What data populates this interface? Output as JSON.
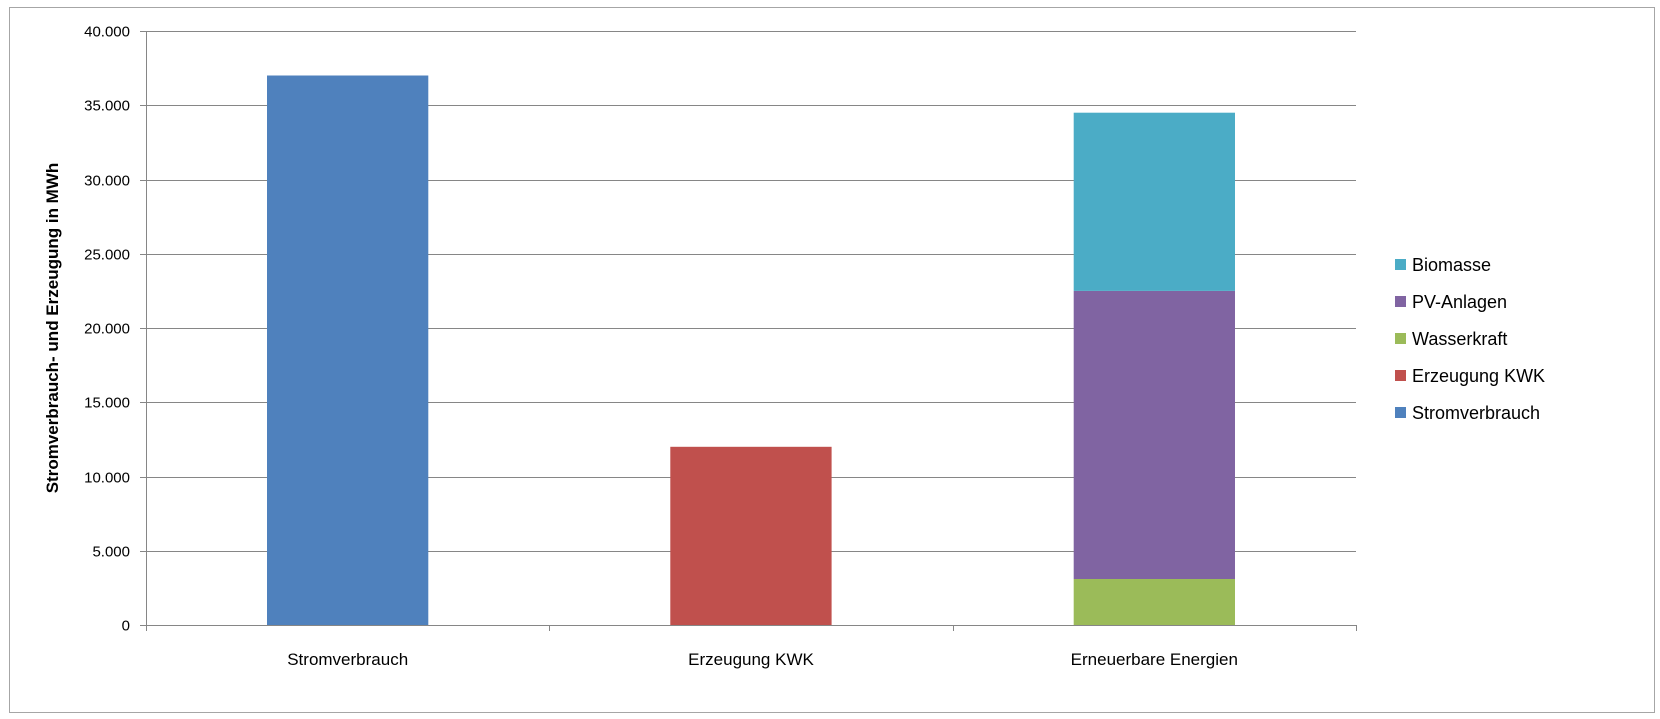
{
  "chart_data": {
    "type": "bar",
    "stacked": true,
    "categories": [
      "Stromverbrauch",
      "Erzeugung KWK",
      "Erneuerbare Energien"
    ],
    "series": [
      {
        "name": "Stromverbrauch",
        "color": "#4F81BD",
        "values": [
          37000,
          0,
          0
        ]
      },
      {
        "name": "Erzeugung KWK",
        "color": "#C0504D",
        "values": [
          0,
          12000,
          0
        ]
      },
      {
        "name": "Wasserkraft",
        "color": "#9BBB59",
        "values": [
          0,
          0,
          3100
        ]
      },
      {
        "name": "PV-Anlagen",
        "color": "#8064A2",
        "values": [
          0,
          0,
          19400
        ]
      },
      {
        "name": "Biomasse",
        "color": "#4BACC6",
        "values": [
          0,
          0,
          12000
        ]
      }
    ],
    "ylabel": "Stromverbrauch- und Erzeugung in MWh",
    "xlabel": "",
    "ylim": [
      0,
      40000
    ],
    "yticks": [
      "0",
      "5.000",
      "10.000",
      "15.000",
      "20.000",
      "25.000",
      "30.000",
      "35.000",
      "40.000"
    ],
    "grid": true,
    "legend_position": "right",
    "legend_order": [
      "Biomasse",
      "PV-Anlagen",
      "Wasserkraft",
      "Erzeugung KWK",
      "Stromverbrauch"
    ]
  }
}
